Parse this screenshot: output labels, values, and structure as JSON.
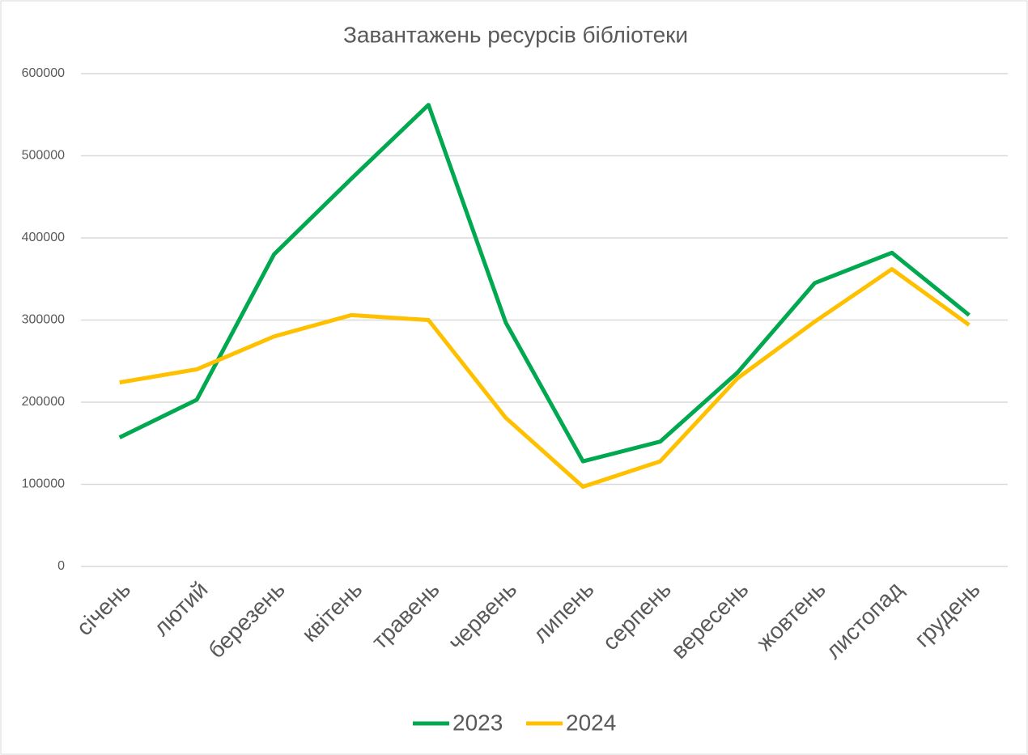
{
  "chart_data": {
    "type": "line",
    "title": "Завантажень ресурсів бібліотеки",
    "categories": [
      "січень",
      "лютий",
      "березень",
      "квітень",
      "травень",
      "червень",
      "липень",
      "серпень",
      "вересень",
      "жовтень",
      "листопад",
      "грудень"
    ],
    "series": [
      {
        "name": "2023",
        "color": "#00a84f",
        "values": [
          157000,
          203000,
          380000,
          472000,
          562000,
          297000,
          128000,
          152000,
          236000,
          345000,
          382000,
          306000
        ]
      },
      {
        "name": "2024",
        "color": "#ffc000",
        "values": [
          224000,
          240000,
          280000,
          306000,
          300000,
          181000,
          97000,
          128000,
          229000,
          298000,
          362000,
          294000
        ]
      }
    ],
    "ylim": [
      0,
      600000
    ],
    "yticks": [
      0,
      100000,
      200000,
      300000,
      400000,
      500000,
      600000
    ],
    "grid": true,
    "legend": "bottom"
  }
}
